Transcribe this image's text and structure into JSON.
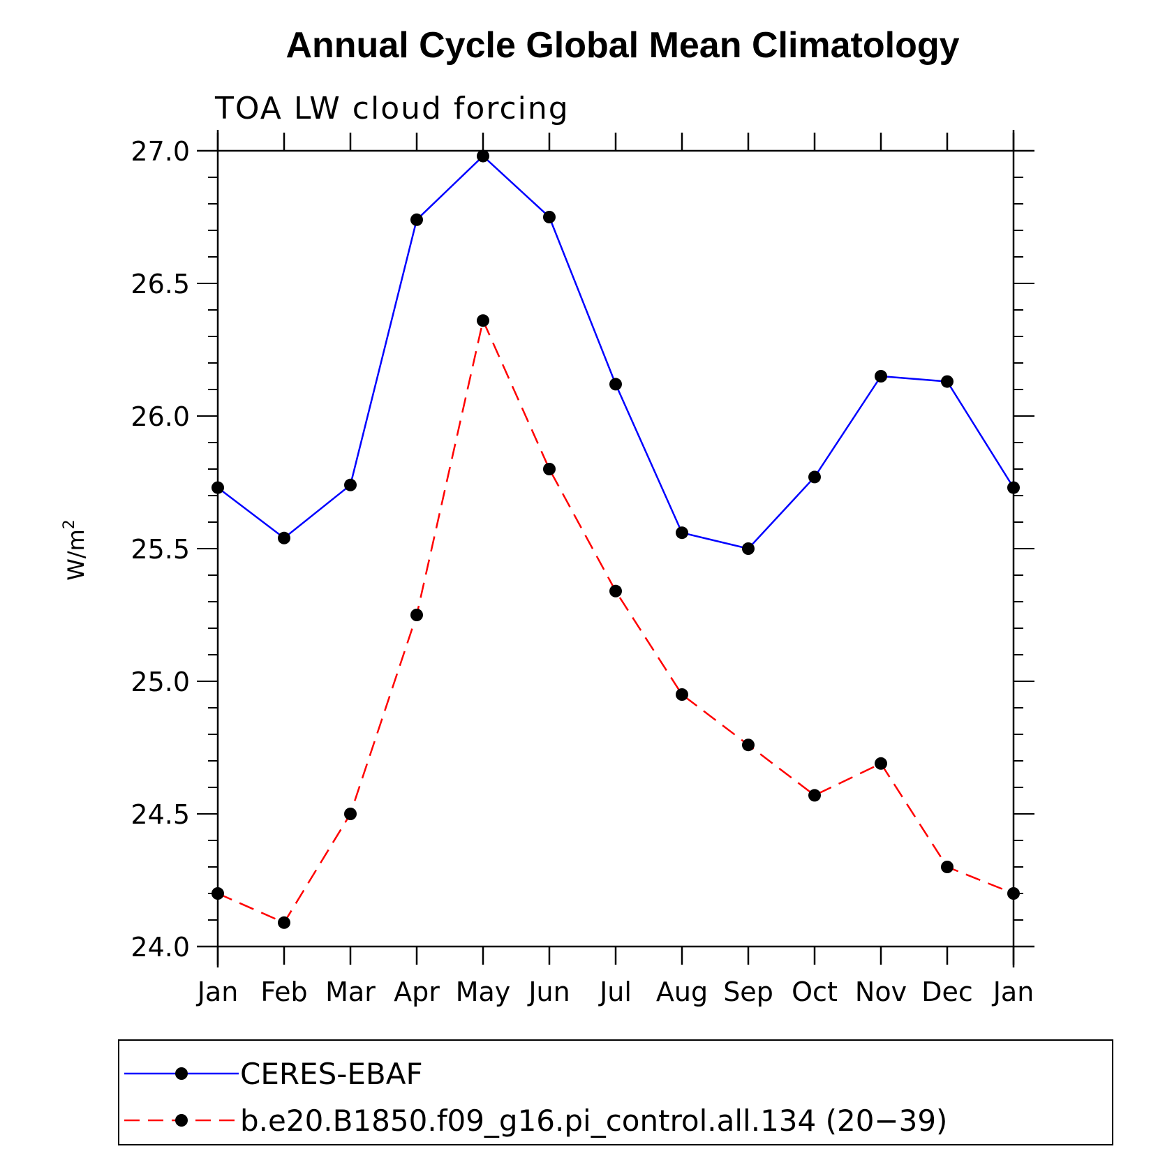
{
  "chart_data": {
    "type": "line",
    "title": "Annual Cycle Global Mean Climatology",
    "subtitle": "TOA LW cloud forcing",
    "ylabel": "W/m",
    "ylabel_superscript": "2",
    "xlabel": "",
    "categories": [
      "Jan",
      "Feb",
      "Mar",
      "Apr",
      "May",
      "Jun",
      "Jul",
      "Aug",
      "Sep",
      "Oct",
      "Nov",
      "Dec",
      "Jan"
    ],
    "ylim": [
      24.0,
      27.0
    ],
    "yticks": [
      "24.0",
      "24.5",
      "25.0",
      "25.5",
      "26.0",
      "26.5",
      "27.0"
    ],
    "grid": false,
    "legend_position": "bottom",
    "series": [
      {
        "name": "CERES-EBAF",
        "color": "#0000ff",
        "dash": "solid",
        "marker": "filled-circle",
        "values": [
          25.73,
          25.54,
          25.74,
          26.74,
          26.98,
          26.75,
          26.12,
          25.56,
          25.5,
          25.77,
          26.15,
          26.13,
          25.73
        ]
      },
      {
        "name": "b.e20.B1850.f09_g16.pi_control.all.134 (20−39)",
        "color": "#ff0000",
        "dash": "dashed",
        "marker": "filled-circle",
        "values": [
          24.2,
          24.09,
          24.5,
          25.25,
          26.36,
          25.8,
          25.34,
          24.95,
          24.76,
          24.57,
          24.69,
          24.3,
          24.2
        ]
      }
    ]
  }
}
